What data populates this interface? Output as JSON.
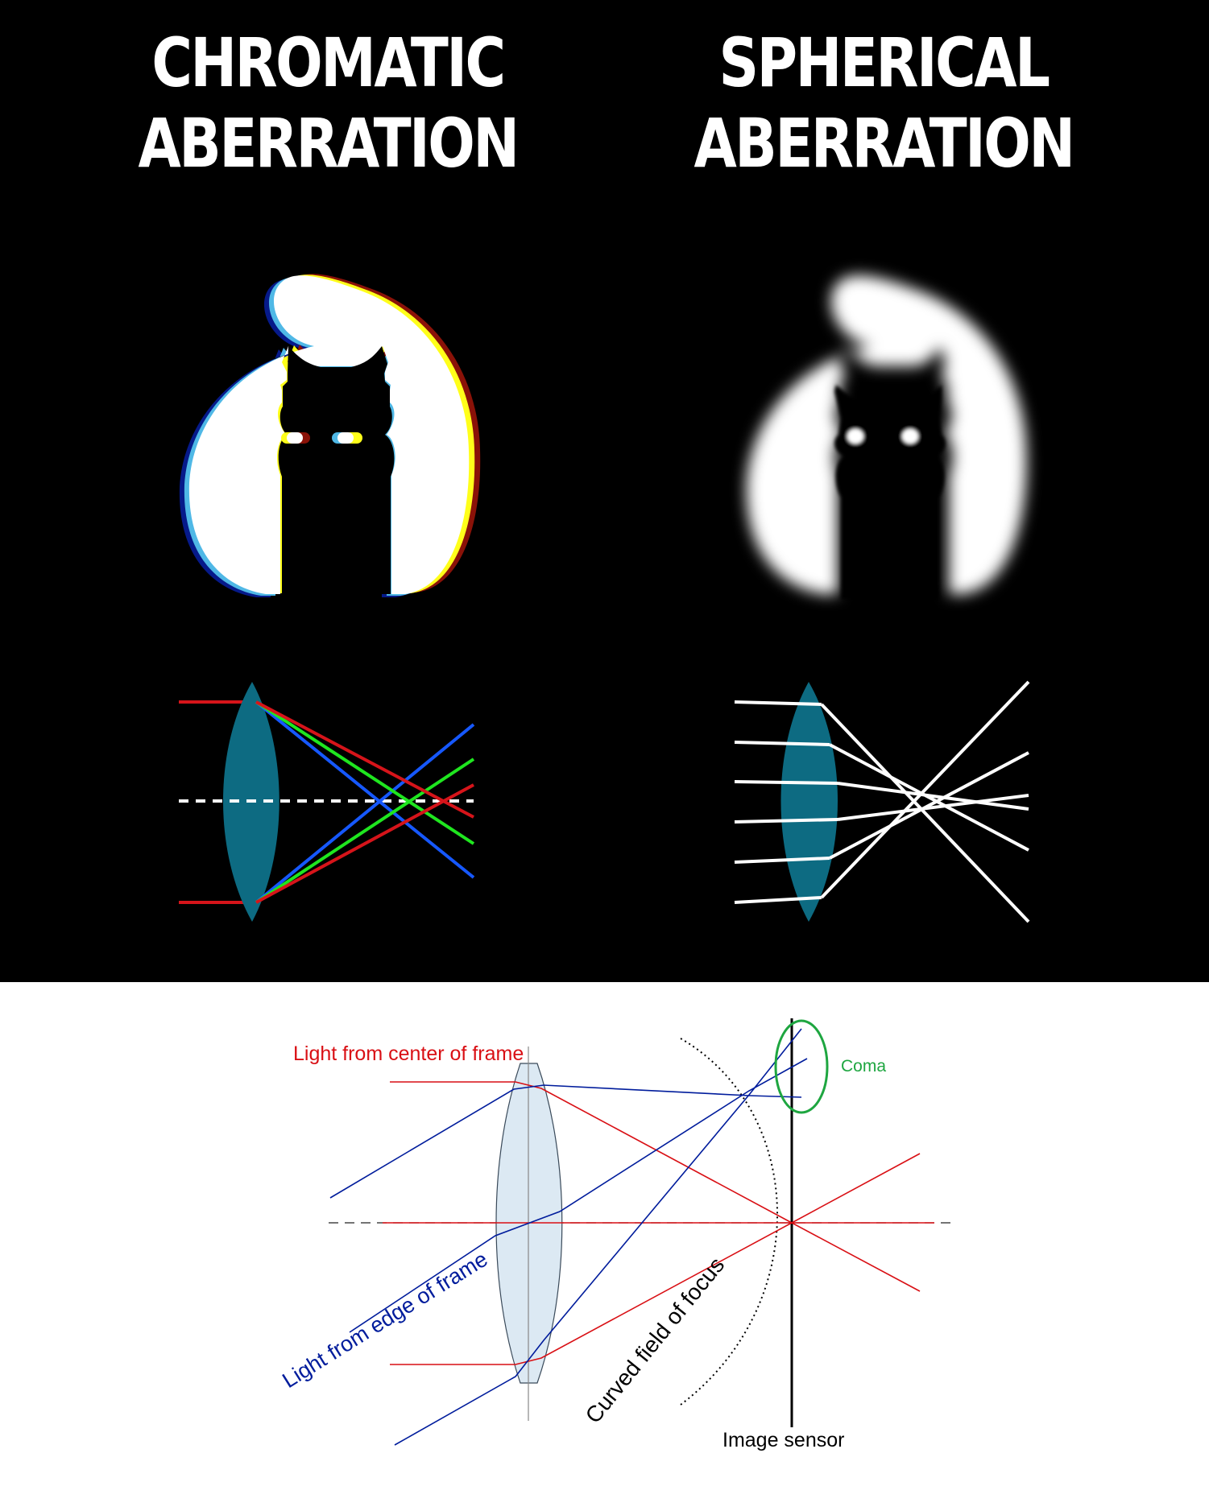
{
  "titles": {
    "left": [
      "CHROMATIC",
      "ABERRATION"
    ],
    "right": [
      "SPHERICAL",
      "ABERRATION"
    ]
  },
  "coma_diagram": {
    "label_center": "Light from center of frame",
    "label_edge": "Light from edge of frame",
    "label_coma": "Coma",
    "label_field": "Curved field of focus",
    "label_sensor": "Image sensor"
  },
  "colors": {
    "panel_bg": "#000000",
    "lens_dark": "#0d6b82",
    "lens_light": "#dce9f3",
    "red_ray": "#d90f14",
    "blue_ray": "#001c9c",
    "coma_green": "#1ea640",
    "spectrum": [
      "#d6141a",
      "#1fe61f",
      "#1658ff"
    ]
  },
  "icons": {
    "cat_shape": "cat-silhouette-icon"
  }
}
